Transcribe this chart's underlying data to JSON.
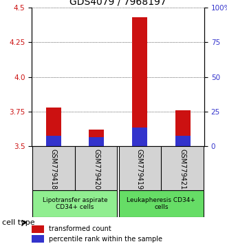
{
  "title": "GDS4079 / 7968197",
  "samples": [
    "GSM779418",
    "GSM779420",
    "GSM779419",
    "GSM779421"
  ],
  "red_values": [
    3.78,
    3.62,
    4.43,
    3.76
  ],
  "blue_values": [
    3.575,
    3.565,
    3.635,
    3.575
  ],
  "red_base": 3.5,
  "ylim": [
    3.5,
    4.5
  ],
  "left_yticks": [
    3.5,
    3.75,
    4.0,
    4.25,
    4.5
  ],
  "right_yticks": [
    0,
    25,
    50,
    75,
    100
  ],
  "right_ylabels": [
    "0",
    "25",
    "50",
    "75",
    "100%"
  ],
  "bar_width": 0.35,
  "cell_types": [
    {
      "label": "Lipotransfer aspirate\nCD34+ cells",
      "color": "#90ee90",
      "samples": [
        0,
        1
      ]
    },
    {
      "label": "Leukapheresis CD34+\ncells",
      "color": "#66dd66",
      "samples": [
        2,
        3
      ]
    }
  ],
  "group_bg_color": "#d3d3d3",
  "title_fontsize": 10,
  "tick_fontsize": 7.5,
  "label_fontsize": 7,
  "red_color": "#cc1111",
  "blue_color": "#3333cc",
  "legend_red": "transformed count",
  "legend_blue": "percentile rank within the sample",
  "left_tick_color": "#cc1111",
  "right_tick_color": "#3333cc",
  "cell_type_fontsize": 6.5,
  "sample_fontsize": 7
}
